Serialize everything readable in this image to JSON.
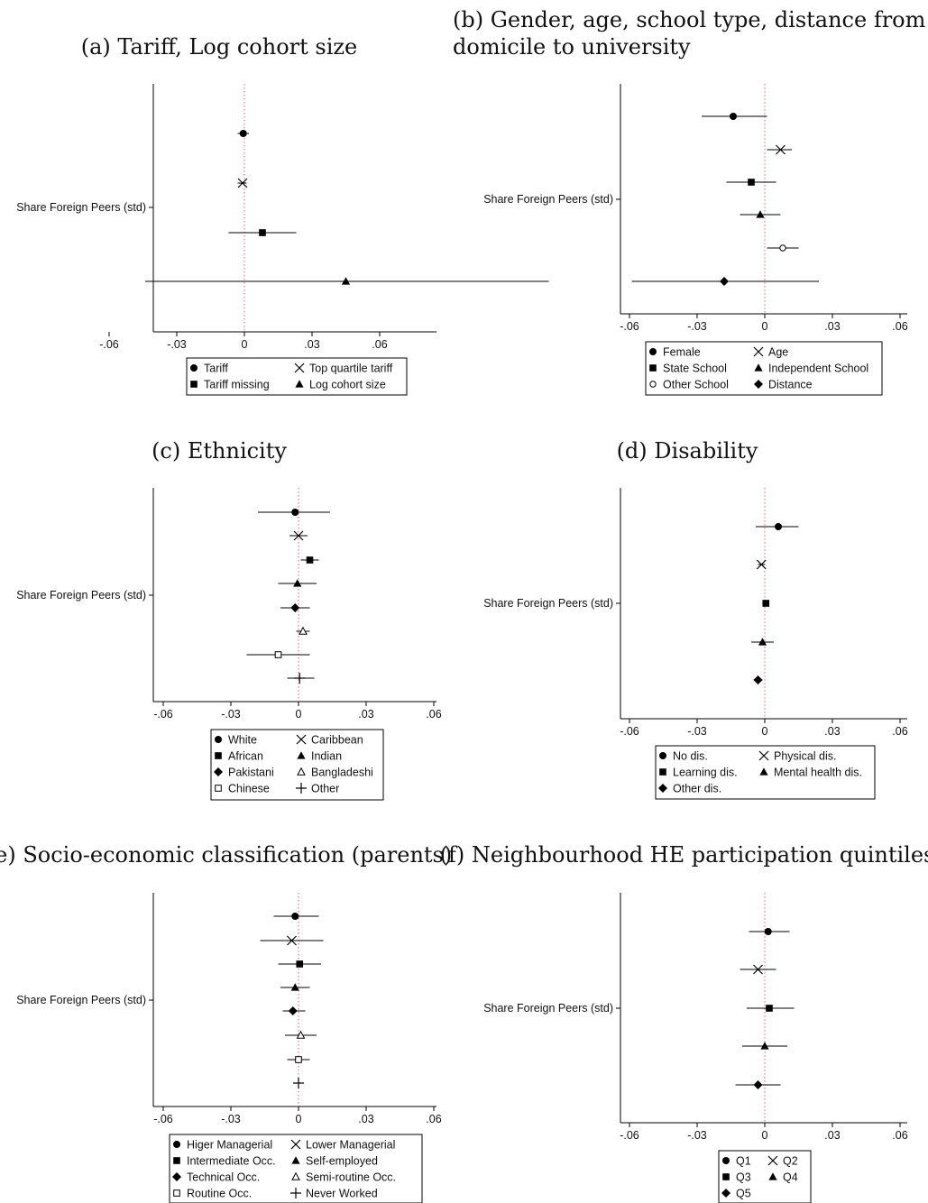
{
  "chart_data": [
    {
      "type": "scatter",
      "title": [
        "(a) Tariff, Log cohort size"
      ],
      "ylabel": "Share Foreign Peers (std)",
      "x_ticks": [
        {
          "v": -0.06,
          "label": "-.06"
        },
        {
          "v": -0.03,
          "label": "-.03"
        },
        {
          "v": 0,
          "label": "0"
        },
        {
          "v": 0.03,
          "label": ".03"
        },
        {
          "v": 0.06,
          "label": ".06"
        }
      ],
      "xlim": [
        -0.062,
        0.14
      ],
      "reference_line": 0,
      "series": [
        {
          "name": "Tariff",
          "marker": "circle",
          "estimate": -0.0005,
          "ci": [
            -0.003,
            0.002
          ]
        },
        {
          "name": "Top quartile tariff",
          "marker": "x",
          "estimate": -0.0008,
          "ci": [
            -0.003,
            0.001
          ]
        },
        {
          "name": "Tariff missing",
          "marker": "square",
          "estimate": 0.008,
          "ci": [
            -0.007,
            0.023
          ]
        },
        {
          "name": "Log cohort size",
          "marker": "triangle",
          "estimate": 0.045,
          "ci": [
            -0.044,
            0.135
          ]
        }
      ]
    },
    {
      "type": "scatter",
      "title": [
        "(b) Gender, age, school type, distance from",
        "domicile to university"
      ],
      "ylabel": "Share Foreign Peers (std)",
      "x_ticks": [
        {
          "v": -0.06,
          "label": "-.06"
        },
        {
          "v": -0.03,
          "label": "-.03"
        },
        {
          "v": 0,
          "label": "0"
        },
        {
          "v": 0.03,
          "label": ".03"
        },
        {
          "v": 0.06,
          "label": ".06"
        }
      ],
      "xlim": [
        -0.063,
        0.063
      ],
      "reference_line": 0,
      "series": [
        {
          "name": "Female",
          "marker": "circle",
          "estimate": -0.014,
          "ci": [
            -0.028,
            0.001
          ]
        },
        {
          "name": "Age",
          "marker": "x",
          "estimate": 0.007,
          "ci": [
            0.001,
            0.012
          ]
        },
        {
          "name": "State School",
          "marker": "square",
          "estimate": -0.006,
          "ci": [
            -0.017,
            0.005
          ]
        },
        {
          "name": "Independent School",
          "marker": "triangle",
          "estimate": -0.002,
          "ci": [
            -0.011,
            0.007
          ]
        },
        {
          "name": "Other School",
          "marker": "circle-open",
          "estimate": 0.008,
          "ci": [
            0.001,
            0.015
          ]
        },
        {
          "name": "Distance",
          "marker": "diamond",
          "estimate": -0.018,
          "ci": [
            -0.059,
            0.024
          ]
        }
      ]
    },
    {
      "type": "scatter",
      "title": [
        "(c) Ethnicity"
      ],
      "ylabel": "Share Foreign Peers (std)",
      "x_ticks": [
        {
          "v": -0.06,
          "label": "-.06"
        },
        {
          "v": -0.03,
          "label": "-.03"
        },
        {
          "v": 0,
          "label": "0"
        },
        {
          "v": 0.03,
          "label": ".03"
        },
        {
          "v": 0.06,
          "label": ".06"
        }
      ],
      "xlim": [
        -0.063,
        0.063
      ],
      "reference_line": 0,
      "series": [
        {
          "name": "White",
          "marker": "circle",
          "estimate": -0.0015,
          "ci": [
            -0.018,
            0.014
          ]
        },
        {
          "name": "Caribbean",
          "marker": "x",
          "estimate": 0.0,
          "ci": [
            -0.004,
            0.004
          ]
        },
        {
          "name": "African",
          "marker": "square",
          "estimate": 0.005,
          "ci": [
            0.001,
            0.009
          ]
        },
        {
          "name": "Indian",
          "marker": "triangle",
          "estimate": -0.0005,
          "ci": [
            -0.009,
            0.008
          ]
        },
        {
          "name": "Pakistani",
          "marker": "diamond",
          "estimate": -0.0015,
          "ci": [
            -0.008,
            0.005
          ]
        },
        {
          "name": "Bangladeshi",
          "marker": "triangle-open",
          "estimate": 0.002,
          "ci": [
            -0.001,
            0.005
          ]
        },
        {
          "name": "Chinese",
          "marker": "square-open",
          "estimate": -0.009,
          "ci": [
            -0.023,
            0.005
          ]
        },
        {
          "name": "Other",
          "marker": "plus",
          "estimate": 0.0005,
          "ci": [
            -0.005,
            0.007
          ]
        }
      ]
    },
    {
      "type": "scatter",
      "title": [
        "(d) Disability"
      ],
      "ylabel": "Share Foreign Peers (std)",
      "x_ticks": [
        {
          "v": -0.06,
          "label": "-.06"
        },
        {
          "v": -0.03,
          "label": "-.03"
        },
        {
          "v": 0,
          "label": "0"
        },
        {
          "v": 0.03,
          "label": ".03"
        },
        {
          "v": 0.06,
          "label": ".06"
        }
      ],
      "xlim": [
        -0.063,
        0.063
      ],
      "reference_line": 0,
      "series": [
        {
          "name": "No dis.",
          "marker": "circle",
          "estimate": 0.006,
          "ci": [
            -0.004,
            0.015
          ]
        },
        {
          "name": "Physical dis.",
          "marker": "x",
          "estimate": -0.0015,
          "ci": [
            -0.003,
            0.0
          ]
        },
        {
          "name": "Learning dis.",
          "marker": "square",
          "estimate": 0.0005,
          "ci": [
            -0.0005,
            0.0015
          ]
        },
        {
          "name": "Mental health dis.",
          "marker": "triangle",
          "estimate": -0.001,
          "ci": [
            -0.006,
            0.004
          ]
        },
        {
          "name": "Other dis.",
          "marker": "diamond",
          "estimate": -0.003,
          "ci": [
            -0.005,
            -0.001
          ]
        }
      ]
    },
    {
      "type": "scatter",
      "title": [
        "(e) Socio-economic classification (parents)"
      ],
      "ylabel": "Share Foreign Peers (std)",
      "x_ticks": [
        {
          "v": -0.06,
          "label": "-.06"
        },
        {
          "v": -0.03,
          "label": "-.03"
        },
        {
          "v": 0,
          "label": "0"
        },
        {
          "v": 0.03,
          "label": ".03"
        },
        {
          "v": 0.06,
          "label": ".06"
        }
      ],
      "xlim": [
        -0.063,
        0.063
      ],
      "reference_line": 0,
      "series": [
        {
          "name": "Higer Managerial",
          "marker": "circle",
          "estimate": -0.0015,
          "ci": [
            -0.011,
            0.009
          ]
        },
        {
          "name": "Lower Managerial",
          "marker": "x",
          "estimate": -0.003,
          "ci": [
            -0.017,
            0.011
          ]
        },
        {
          "name": "Intermediate Occ.",
          "marker": "square",
          "estimate": 0.0005,
          "ci": [
            -0.009,
            0.01
          ]
        },
        {
          "name": "Self-employed",
          "marker": "triangle",
          "estimate": -0.0015,
          "ci": [
            -0.008,
            0.005
          ]
        },
        {
          "name": "Technical Occ.",
          "marker": "diamond",
          "estimate": -0.0025,
          "ci": [
            -0.007,
            0.003
          ]
        },
        {
          "name": "Semi-routine Occ.",
          "marker": "triangle-open",
          "estimate": 0.001,
          "ci": [
            -0.006,
            0.008
          ]
        },
        {
          "name": "Routine Occ.",
          "marker": "square-open",
          "estimate": 0.0,
          "ci": [
            -0.005,
            0.005
          ]
        },
        {
          "name": "Never Worked",
          "marker": "plus",
          "estimate": 0.0,
          "ci": [
            -0.001,
            0.001
          ]
        }
      ]
    },
    {
      "type": "scatter",
      "title": [
        "(f) Neighbourhood HE participation quintiles"
      ],
      "ylabel": "Share Foreign Peers (std)",
      "x_ticks": [
        {
          "v": -0.06,
          "label": "-.06"
        },
        {
          "v": -0.03,
          "label": "-.03"
        },
        {
          "v": 0,
          "label": "0"
        },
        {
          "v": 0.03,
          "label": ".03"
        },
        {
          "v": 0.06,
          "label": ".06"
        }
      ],
      "xlim": [
        -0.063,
        0.063
      ],
      "reference_line": 0,
      "series": [
        {
          "name": "Q1",
          "marker": "circle",
          "estimate": 0.0015,
          "ci": [
            -0.007,
            0.011
          ]
        },
        {
          "name": "Q2",
          "marker": "x",
          "estimate": -0.003,
          "ci": [
            -0.011,
            0.005
          ]
        },
        {
          "name": "Q3",
          "marker": "square",
          "estimate": 0.002,
          "ci": [
            -0.008,
            0.013
          ]
        },
        {
          "name": "Q4",
          "marker": "triangle",
          "estimate": 0.0,
          "ci": [
            -0.01,
            0.01
          ]
        },
        {
          "name": "Q5",
          "marker": "diamond",
          "estimate": -0.003,
          "ci": [
            -0.013,
            0.007
          ]
        }
      ]
    }
  ]
}
